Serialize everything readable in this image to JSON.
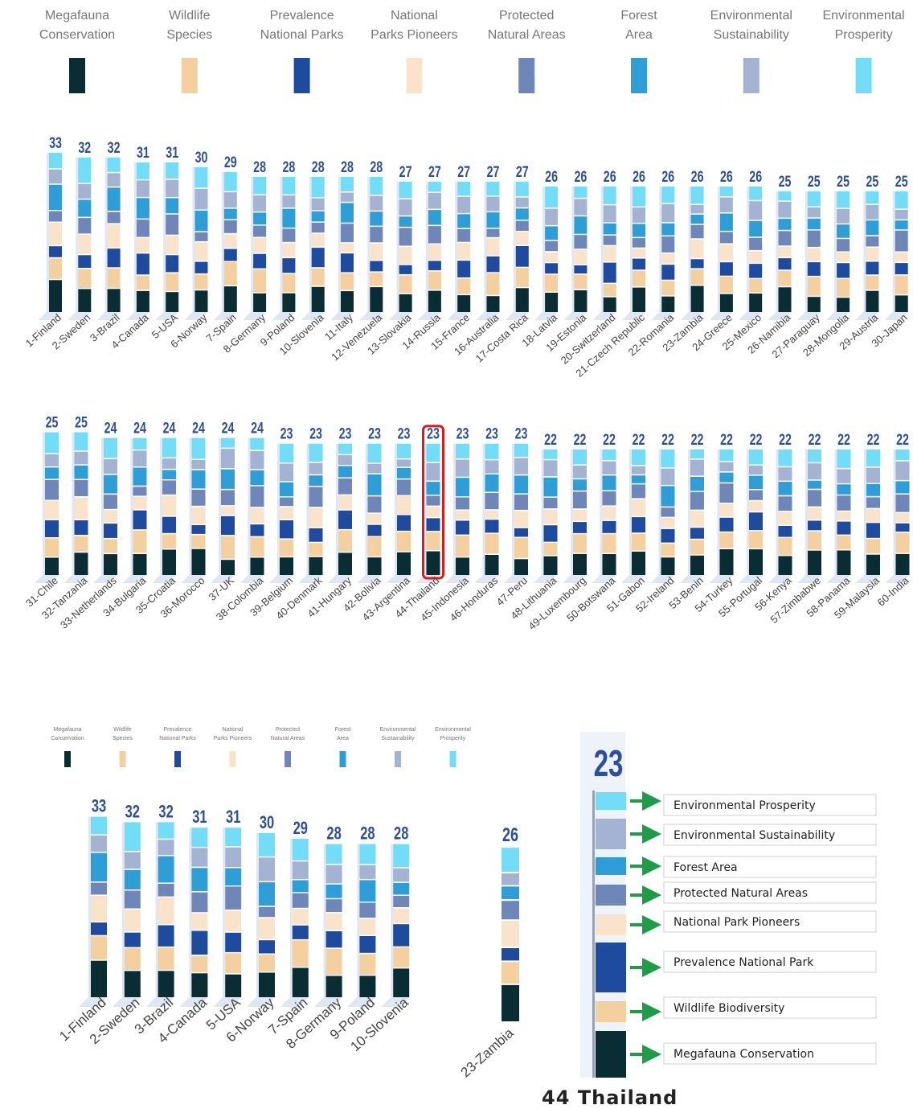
{
  "colors": {
    "megafauna": "#0a2d33",
    "wildlife": "#f4cfa0",
    "prevalence": "#1f4b9e",
    "pioneers": "#fae3cb",
    "protected": "#6e87b8",
    "forest": "#2f9ed6",
    "sustainability": "#a5b3d2",
    "prosperity": "#73dcf6",
    "score": "#2b4f9e",
    "highlight": "#e01a1a",
    "arrow": "#1e9c4a",
    "shadow": "#dfe6f4"
  },
  "chart_data": [
    {
      "type": "bar",
      "stacked": true,
      "legend": [
        {
          "key": "megafauna",
          "lines": [
            "Megafauna",
            "Conservation"
          ]
        },
        {
          "key": "wildlife",
          "lines": [
            "Wildlife",
            "Species"
          ]
        },
        {
          "key": "prevalence",
          "lines": [
            "Prevalence",
            "National Parks"
          ]
        },
        {
          "key": "pioneers",
          "lines": [
            "National",
            "Parks Pioneers"
          ]
        },
        {
          "key": "protected",
          "lines": [
            "Protected",
            "Natural Areas"
          ]
        },
        {
          "key": "forest",
          "lines": [
            "Forest",
            "Area"
          ]
        },
        {
          "key": "sustainability",
          "lines": [
            "Environmental",
            "Sustainability"
          ]
        },
        {
          "key": "prosperity",
          "lines": [
            "Environmental",
            "Prosperity"
          ]
        }
      ],
      "categories": [
        "1-Finland",
        "2-Sweden",
        "3-Brazil",
        "4-Canada",
        "5-USA",
        "6-Norway",
        "7-Spain",
        "8-Germany",
        "9-Poland",
        "10-Slovenia",
        "11-Italy",
        "12-Venezuela",
        "13-Slovakia",
        "14-Russia",
        "15-France",
        "16-Australia",
        "17-Costa Rica",
        "18-Latvia",
        "19-Estonia",
        "20-Switzerland",
        "21-Czech Republic",
        "22-Romania",
        "23-Zambia",
        "24-Greece",
        "25-Mexico",
        "26-Namibia",
        "27-Paraguay",
        "28-Mongolia",
        "29-Austria",
        "30-Japan"
      ],
      "values": [
        33,
        32,
        32,
        31,
        31,
        30,
        29,
        28,
        28,
        28,
        28,
        28,
        27,
        27,
        27,
        27,
        27,
        26,
        26,
        26,
        26,
        26,
        26,
        26,
        26,
        25,
        25,
        25,
        25,
        25
      ]
    },
    {
      "type": "bar",
      "stacked": true,
      "categories": [
        "31-Chile",
        "32-Tanzania",
        "33-Netherlands",
        "34-Bulgaria",
        "35-Croatia",
        "36-Morocco",
        "37-UK",
        "38-Colombia",
        "39-Belgium",
        "40-Denmark",
        "41-Hungary",
        "42-Bolivia",
        "43-Argentina",
        "44-Thailand",
        "45-Indonesia",
        "46-Honduras",
        "47-Peru",
        "48-Lithuania",
        "49-Luxembourg",
        "50-Botswana",
        "51-Gabon",
        "52-Ireland",
        "53-Benin",
        "54-Turkey",
        "55-Portugal",
        "56-Kenya",
        "57-Zimbabwe",
        "58-Panama",
        "59-Malaysia",
        "60-India"
      ],
      "values": [
        25,
        25,
        24,
        24,
        24,
        24,
        24,
        24,
        23,
        23,
        23,
        23,
        23,
        23,
        23,
        23,
        23,
        22,
        22,
        22,
        22,
        22,
        22,
        22,
        22,
        22,
        22,
        22,
        22,
        22
      ],
      "highlight": "44-Thailand"
    },
    {
      "type": "bar",
      "stacked": true,
      "categories": [
        "1-Finland",
        "2-Sweden",
        "3-Brazil",
        "4-Canada",
        "5-USA",
        "6-Norway",
        "7-Spain",
        "8-Germany",
        "9-Poland",
        "10-Slovenia"
      ],
      "values": [
        33,
        32,
        32,
        31,
        31,
        30,
        29,
        28,
        28,
        28
      ]
    },
    {
      "type": "bar",
      "stacked": true,
      "categories": [
        "23-Zambia"
      ],
      "values": [
        26
      ]
    },
    {
      "type": "bar",
      "stacked": true,
      "categories": [
        "44 Thailand"
      ],
      "values": [
        23
      ],
      "series": [
        {
          "name": "Environmental Prosperity",
          "key": "prosperity"
        },
        {
          "name": "Environmental Sustainability",
          "key": "sustainability"
        },
        {
          "name": "Forest Area",
          "key": "forest"
        },
        {
          "name": "Protected Natural Areas",
          "key": "protected"
        },
        {
          "name": "National Park Pioneers",
          "key": "pioneers"
        },
        {
          "name": "Prevalence National Park",
          "key": "prevalence"
        },
        {
          "name": "Wildlife Biodiversity",
          "key": "wildlife"
        },
        {
          "name": "Megafauna Conservation",
          "key": "megafauna"
        }
      ]
    }
  ]
}
